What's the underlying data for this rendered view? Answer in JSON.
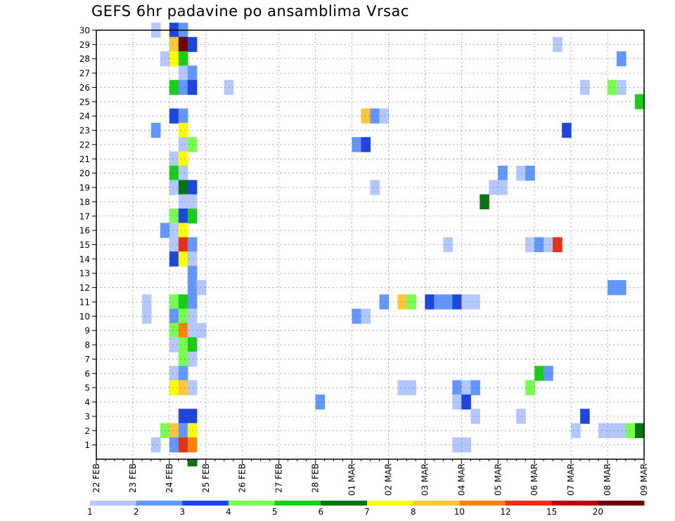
{
  "chart_data": {
    "type": "heatmap",
    "title": "GEFS 6hr padavine po ansamblima Vrsac",
    "xlabel": "",
    "ylabel": "",
    "x_tick_labels": [
      "22 FEB",
      "23 FEB",
      "24 FEB",
      "25 FEB",
      "26 FEB",
      "27 FEB",
      "28 FEB",
      "01 MAR",
      "02 MAR",
      "03 MAR",
      "04 MAR",
      "05 MAR",
      "06 MAR",
      "07 MAR",
      "08 MAR",
      "09 MAR"
    ],
    "x_steps_per_day": 4,
    "x_range_steps": [
      0,
      60
    ],
    "y_tick_labels": [
      "1",
      "2",
      "3",
      "4",
      "5",
      "6",
      "7",
      "8",
      "9",
      "10",
      "11",
      "12",
      "13",
      "14",
      "15",
      "16",
      "17",
      "18",
      "19",
      "20",
      "21",
      "22",
      "23",
      "24",
      "25",
      "26",
      "27",
      "28",
      "29",
      "30"
    ],
    "y_range": [
      0,
      30
    ],
    "grid": true,
    "legend": {
      "placement": "bottom",
      "labels": [
        "1",
        "2",
        "3",
        "4",
        "5",
        "6",
        "7",
        "8",
        "10",
        "12",
        "15",
        "20"
      ],
      "colors": [
        "#b4c8ff",
        "#6496ff",
        "#1e46dc",
        "#78ff50",
        "#19cd19",
        "#0a7314",
        "#ffff00",
        "#ffc83c",
        "#ff8200",
        "#e63214",
        "#b40a0a",
        "#6e0000"
      ]
    },
    "cells": [
      [
        30,
        6,
        0
      ],
      [
        30,
        8,
        2
      ],
      [
        30,
        9,
        1
      ],
      [
        29,
        8,
        7
      ],
      [
        29,
        9,
        11
      ],
      [
        29,
        10,
        2
      ],
      [
        29,
        50,
        0
      ],
      [
        28,
        7,
        0
      ],
      [
        28,
        8,
        6
      ],
      [
        28,
        9,
        4
      ],
      [
        28,
        57,
        1
      ],
      [
        27,
        9,
        0
      ],
      [
        27,
        10,
        1
      ],
      [
        26,
        8,
        4
      ],
      [
        26,
        9,
        1
      ],
      [
        26,
        10,
        2
      ],
      [
        26,
        14,
        0
      ],
      [
        26,
        53,
        0
      ],
      [
        26,
        56,
        3
      ],
      [
        26,
        57,
        0
      ],
      [
        25,
        59,
        4
      ],
      [
        24,
        8,
        2
      ],
      [
        24,
        9,
        1
      ],
      [
        24,
        29,
        7
      ],
      [
        24,
        30,
        1
      ],
      [
        24,
        31,
        0
      ],
      [
        23,
        6,
        1
      ],
      [
        23,
        9,
        6
      ],
      [
        23,
        51,
        2
      ],
      [
        22,
        9,
        0
      ],
      [
        22,
        10,
        3
      ],
      [
        22,
        28,
        1
      ],
      [
        22,
        29,
        2
      ],
      [
        21,
        8,
        0
      ],
      [
        21,
        9,
        6
      ],
      [
        20,
        8,
        4
      ],
      [
        20,
        9,
        0
      ],
      [
        20,
        44,
        1
      ],
      [
        20,
        46,
        0
      ],
      [
        20,
        47,
        1
      ],
      [
        19,
        8,
        0
      ],
      [
        19,
        9,
        5
      ],
      [
        19,
        10,
        2
      ],
      [
        19,
        30,
        0
      ],
      [
        19,
        43,
        0
      ],
      [
        19,
        44,
        0
      ],
      [
        18,
        9,
        0
      ],
      [
        18,
        10,
        0
      ],
      [
        18,
        42,
        5
      ],
      [
        17,
        8,
        3
      ],
      [
        17,
        9,
        2
      ],
      [
        17,
        10,
        4
      ],
      [
        16,
        7,
        1
      ],
      [
        16,
        8,
        0
      ],
      [
        16,
        9,
        6
      ],
      [
        15,
        8,
        0
      ],
      [
        15,
        9,
        9
      ],
      [
        15,
        10,
        1
      ],
      [
        15,
        38,
        0
      ],
      [
        15,
        47,
        0
      ],
      [
        15,
        48,
        1
      ],
      [
        15,
        49,
        0
      ],
      [
        15,
        50,
        9
      ],
      [
        14,
        8,
        2
      ],
      [
        14,
        9,
        6
      ],
      [
        14,
        10,
        0
      ],
      [
        13,
        10,
        1
      ],
      [
        12,
        10,
        1
      ],
      [
        12,
        11,
        0
      ],
      [
        12,
        56,
        1
      ],
      [
        12,
        57,
        1
      ],
      [
        11,
        5,
        0
      ],
      [
        11,
        8,
        3
      ],
      [
        11,
        9,
        4
      ],
      [
        11,
        10,
        1
      ],
      [
        11,
        31,
        1
      ],
      [
        11,
        33,
        7
      ],
      [
        11,
        34,
        3
      ],
      [
        11,
        36,
        2
      ],
      [
        11,
        37,
        1
      ],
      [
        11,
        38,
        1
      ],
      [
        11,
        39,
        2
      ],
      [
        11,
        40,
        0
      ],
      [
        11,
        41,
        0
      ],
      [
        10,
        5,
        0
      ],
      [
        10,
        8,
        1
      ],
      [
        10,
        9,
        3
      ],
      [
        10,
        10,
        0
      ],
      [
        10,
        28,
        1
      ],
      [
        10,
        29,
        0
      ],
      [
        9,
        8,
        3
      ],
      [
        9,
        9,
        8
      ],
      [
        9,
        10,
        0
      ],
      [
        9,
        11,
        0
      ],
      [
        8,
        8,
        0
      ],
      [
        8,
        9,
        3
      ],
      [
        8,
        10,
        4
      ],
      [
        7,
        9,
        3
      ],
      [
        7,
        10,
        0
      ],
      [
        6,
        8,
        0
      ],
      [
        6,
        9,
        1
      ],
      [
        6,
        48,
        4
      ],
      [
        6,
        49,
        1
      ],
      [
        5,
        8,
        6
      ],
      [
        5,
        9,
        7
      ],
      [
        5,
        10,
        0
      ],
      [
        5,
        33,
        0
      ],
      [
        5,
        34,
        0
      ],
      [
        5,
        39,
        1
      ],
      [
        5,
        40,
        0
      ],
      [
        5,
        41,
        1
      ],
      [
        5,
        47,
        3
      ],
      [
        4,
        24,
        1
      ],
      [
        4,
        39,
        0
      ],
      [
        4,
        40,
        2
      ],
      [
        3,
        9,
        2
      ],
      [
        3,
        10,
        2
      ],
      [
        3,
        41,
        0
      ],
      [
        3,
        46,
        0
      ],
      [
        3,
        53,
        2
      ],
      [
        2,
        7,
        3
      ],
      [
        2,
        8,
        7
      ],
      [
        2,
        9,
        1
      ],
      [
        2,
        10,
        6
      ],
      [
        2,
        52,
        0
      ],
      [
        2,
        55,
        0
      ],
      [
        2,
        56,
        0
      ],
      [
        2,
        57,
        0
      ],
      [
        2,
        58,
        3
      ],
      [
        2,
        59,
        5
      ],
      [
        1,
        6,
        0
      ],
      [
        1,
        8,
        1
      ],
      [
        1,
        9,
        9
      ],
      [
        1,
        10,
        8
      ],
      [
        1,
        39,
        0
      ],
      [
        1,
        40,
        0
      ],
      [
        0,
        10,
        5
      ],
      [
        0,
        10,
        5
      ]
    ]
  }
}
